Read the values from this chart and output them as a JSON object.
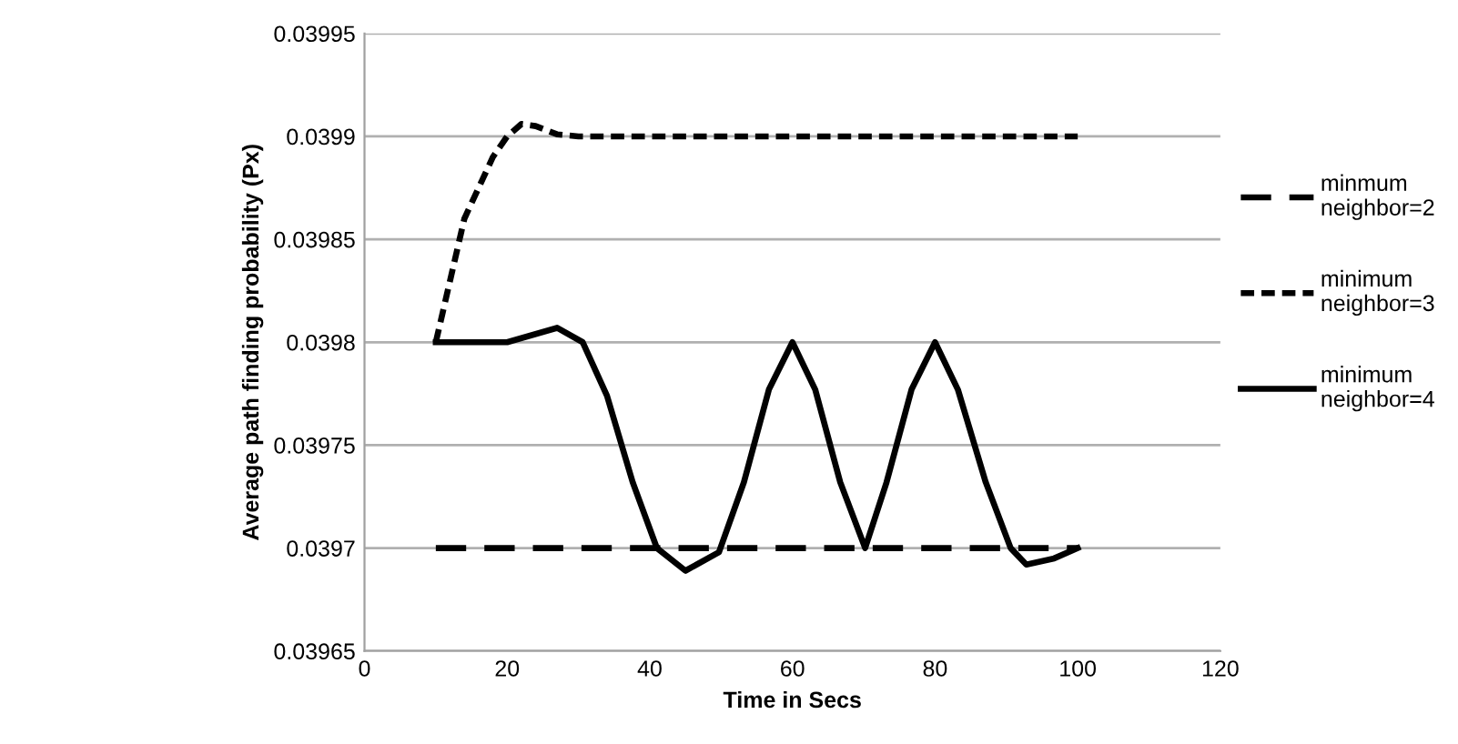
{
  "chart_data": {
    "type": "line",
    "xlabel": "Time in Secs",
    "ylabel": "Average path finding probability (Px)",
    "series": [
      {
        "name": "minmum neighbor=2",
        "color": "#000000",
        "line_style": "dashed",
        "x": [
          10,
          20,
          30,
          40,
          50,
          60,
          70,
          80,
          90,
          100
        ],
        "values": [
          0.0397,
          0.0397,
          0.0397,
          0.0397,
          0.0397,
          0.0397,
          0.0397,
          0.0397,
          0.0397,
          0.0397
        ]
      },
      {
        "name": "minimum neighbor=3",
        "color": "#000000",
        "line_style": "dotted",
        "x": [
          10,
          12,
          14,
          16,
          18,
          20,
          22,
          24,
          27,
          30,
          100
        ],
        "values": [
          0.0398,
          0.03983,
          0.03986,
          0.039875,
          0.03989,
          0.0399,
          0.039906,
          0.039905,
          0.039901,
          0.0399,
          0.0399
        ]
      },
      {
        "name": "minimum neighbor=4",
        "color": "#000000",
        "line_style": "solid",
        "x": [
          10,
          20,
          24,
          27,
          30.6,
          34,
          37.6,
          41,
          45,
          49.7,
          53.2,
          56.7,
          60,
          63.2,
          66.7,
          70.2,
          73.2,
          76.7,
          80,
          83.2,
          87.1,
          90.6,
          92.8,
          96.7,
          100
        ],
        "values": [
          0.0398,
          0.0398,
          0.039804,
          0.039807,
          0.0398,
          0.039774,
          0.039732,
          0.0397,
          0.039689,
          0.039698,
          0.039732,
          0.039777,
          0.0398,
          0.039777,
          0.039732,
          0.0397,
          0.039732,
          0.039777,
          0.0398,
          0.039777,
          0.039732,
          0.0397,
          0.039692,
          0.039695,
          0.0397
        ]
      }
    ],
    "xlim": [
      0,
      120
    ],
    "xticks": [
      0,
      20,
      40,
      60,
      80,
      100,
      120
    ],
    "ylim": [
      0.03965,
      0.03995
    ],
    "yticks": [
      0.03965,
      0.0397,
      0.03975,
      0.0398,
      0.03985,
      0.0399,
      0.03995
    ],
    "grid": "y",
    "legend": "right",
    "marker": "none"
  }
}
